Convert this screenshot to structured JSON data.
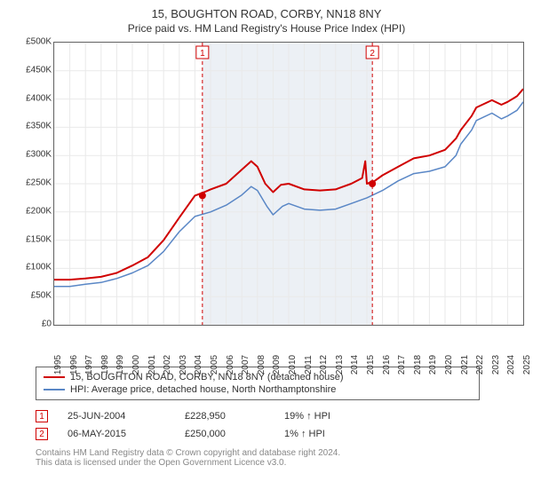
{
  "title_line1": "15, BOUGHTON ROAD, CORBY, NN18 8NY",
  "title_line2": "Price paid vs. HM Land Registry's House Price Index (HPI)",
  "chart": {
    "type": "line",
    "x_years": [
      1995,
      1996,
      1997,
      1998,
      1999,
      2000,
      2001,
      2002,
      2003,
      2004,
      2005,
      2006,
      2007,
      2008,
      2009,
      2010,
      2011,
      2012,
      2013,
      2014,
      2015,
      2016,
      2017,
      2018,
      2019,
      2020,
      2021,
      2022,
      2023,
      2024,
      2025
    ],
    "ylim": [
      0,
      500000
    ],
    "ytick_step": 50000,
    "ytick_labels": [
      "£0",
      "£50K",
      "£100K",
      "£150K",
      "£200K",
      "£250K",
      "£300K",
      "£350K",
      "£400K",
      "£450K",
      "£500K"
    ],
    "grid_color": "#e9e9e9",
    "band_color": "#ecf0f5",
    "background_color": "#ffffff",
    "axis_color": "#666666",
    "series": [
      {
        "name": "15, BOUGHTON ROAD, CORBY, NN18 8NY (detached house)",
        "color": "#d00000",
        "width": 2,
        "data": [
          [
            1995,
            80000
          ],
          [
            1996,
            80000
          ],
          [
            1997,
            82000
          ],
          [
            1998,
            85000
          ],
          [
            1999,
            92000
          ],
          [
            2000,
            105000
          ],
          [
            2001,
            120000
          ],
          [
            2002,
            150000
          ],
          [
            2003,
            190000
          ],
          [
            2004,
            228950
          ],
          [
            2004.6,
            235000
          ],
          [
            2005,
            240000
          ],
          [
            2006,
            250000
          ],
          [
            2007,
            275000
          ],
          [
            2007.6,
            290000
          ],
          [
            2008,
            280000
          ],
          [
            2008.5,
            250000
          ],
          [
            2009,
            235000
          ],
          [
            2009.5,
            248000
          ],
          [
            2010,
            250000
          ],
          [
            2011,
            240000
          ],
          [
            2012,
            238000
          ],
          [
            2013,
            240000
          ],
          [
            2014,
            250000
          ],
          [
            2014.7,
            260000
          ],
          [
            2014.9,
            290000
          ],
          [
            2015,
            250000
          ],
          [
            2015.5,
            255000
          ],
          [
            2016,
            265000
          ],
          [
            2017,
            280000
          ],
          [
            2018,
            295000
          ],
          [
            2019,
            300000
          ],
          [
            2020,
            310000
          ],
          [
            2020.7,
            330000
          ],
          [
            2021,
            345000
          ],
          [
            2021.7,
            370000
          ],
          [
            2022,
            385000
          ],
          [
            2023,
            398000
          ],
          [
            2023.6,
            390000
          ],
          [
            2024,
            395000
          ],
          [
            2024.6,
            405000
          ],
          [
            2025,
            418000
          ]
        ]
      },
      {
        "name": "HPI: Average price, detached house, North Northamptonshire",
        "color": "#5a87c6",
        "width": 1.5,
        "data": [
          [
            1995,
            68000
          ],
          [
            1996,
            68000
          ],
          [
            1997,
            72000
          ],
          [
            1998,
            75000
          ],
          [
            1999,
            82000
          ],
          [
            2000,
            92000
          ],
          [
            2001,
            105000
          ],
          [
            2002,
            130000
          ],
          [
            2003,
            165000
          ],
          [
            2004,
            192000
          ],
          [
            2005,
            200000
          ],
          [
            2006,
            212000
          ],
          [
            2007,
            230000
          ],
          [
            2007.6,
            245000
          ],
          [
            2008,
            238000
          ],
          [
            2008.6,
            210000
          ],
          [
            2009,
            195000
          ],
          [
            2009.6,
            210000
          ],
          [
            2010,
            215000
          ],
          [
            2011,
            205000
          ],
          [
            2012,
            203000
          ],
          [
            2013,
            205000
          ],
          [
            2014,
            215000
          ],
          [
            2015,
            225000
          ],
          [
            2016,
            238000
          ],
          [
            2017,
            255000
          ],
          [
            2018,
            268000
          ],
          [
            2019,
            272000
          ],
          [
            2020,
            280000
          ],
          [
            2020.7,
            300000
          ],
          [
            2021,
            320000
          ],
          [
            2021.7,
            345000
          ],
          [
            2022,
            362000
          ],
          [
            2023,
            375000
          ],
          [
            2023.6,
            365000
          ],
          [
            2024,
            370000
          ],
          [
            2024.6,
            380000
          ],
          [
            2025,
            395000
          ]
        ]
      }
    ],
    "sale_markers": [
      {
        "label": "1",
        "x": 2004.48,
        "price": 228950,
        "color": "#d00000"
      },
      {
        "label": "2",
        "x": 2015.35,
        "price": 250000,
        "color": "#d00000"
      }
    ]
  },
  "legend": [
    {
      "color": "#d00000",
      "label": "15, BOUGHTON ROAD, CORBY, NN18 8NY (detached house)"
    },
    {
      "color": "#5a87c6",
      "label": "HPI: Average price, detached house, North Northamptonshire"
    }
  ],
  "sales": [
    {
      "marker": "1",
      "date": "25-JUN-2004",
      "price": "£228,950",
      "hpi_pct": "19%",
      "arrow": "↑",
      "hpi_label": "HPI"
    },
    {
      "marker": "2",
      "date": "06-MAY-2015",
      "price": "£250,000",
      "hpi_pct": "1%",
      "arrow": "↑",
      "hpi_label": "HPI"
    }
  ],
  "footer_line1": "Contains HM Land Registry data © Crown copyright and database right 2024.",
  "footer_line2": "This data is licensed under the Open Government Licence v3.0."
}
